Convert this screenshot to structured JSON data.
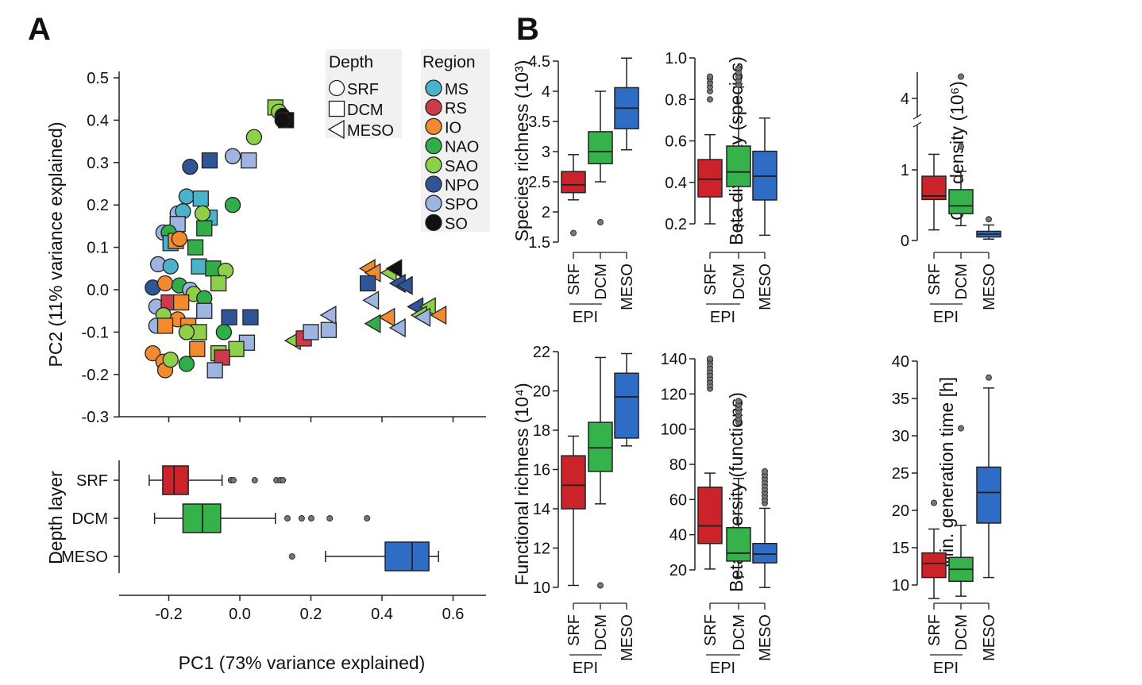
{
  "panels": {
    "a": "A",
    "b": "B"
  },
  "chart_data": [
    {
      "type": "scatter",
      "xlabel": "",
      "ylabel": "PC2 (11% variance explained)",
      "xlim": [
        -0.35,
        0.7
      ],
      "ylim": [
        -0.3,
        0.5
      ],
      "yticks": [
        "0.5",
        "0.4",
        "0.3",
        "0.2",
        "0.1",
        "0.0",
        "-0.1",
        "-0.2",
        "-0.3"
      ],
      "legend": {
        "placement": "top-right",
        "depth_title": "Depth",
        "depth": [
          {
            "label": "SRF",
            "shape": "circle"
          },
          {
            "label": "DCM",
            "shape": "square"
          },
          {
            "label": "MESO",
            "shape": "triangle-left"
          }
        ],
        "region_title": "Region",
        "regions": [
          {
            "label": "MS",
            "color": "#4bb3c9"
          },
          {
            "label": "RS",
            "color": "#cc3b4a"
          },
          {
            "label": "IO",
            "color": "#f28a30"
          },
          {
            "label": "NAO",
            "color": "#2fae4a"
          },
          {
            "label": "SAO",
            "color": "#8fd04a"
          },
          {
            "label": "NPO",
            "color": "#2f5597"
          },
          {
            "label": "SPO",
            "color": "#9db5e0"
          },
          {
            "label": "SO",
            "color": "#111111"
          }
        ]
      },
      "points": [
        [
          "SAO",
          "DCM",
          0.1,
          0.43
        ],
        [
          "SAO",
          "SRF",
          0.11,
          0.42
        ],
        [
          "SO",
          "SRF",
          0.12,
          0.41
        ],
        [
          "SO",
          "DCM",
          0.13,
          0.4
        ],
        [
          "SO",
          "SRF",
          0.12,
          0.4
        ],
        [
          "SAO",
          "SRF",
          0.04,
          0.36
        ],
        [
          "NPO",
          "SRF",
          -0.14,
          0.29
        ],
        [
          "NPO",
          "DCM",
          -0.085,
          0.305
        ],
        [
          "SPO",
          "SRF",
          -0.02,
          0.315
        ],
        [
          "SPO",
          "DCM",
          0.025,
          0.305
        ],
        [
          "NAO",
          "SRF",
          -0.02,
          0.2
        ],
        [
          "MS",
          "SRF",
          -0.15,
          0.22
        ],
        [
          "MS",
          "DCM",
          -0.11,
          0.215
        ],
        [
          "SPO",
          "SRF",
          -0.175,
          0.18
        ],
        [
          "MS",
          "SRF",
          -0.16,
          0.185
        ],
        [
          "MS",
          "DCM",
          -0.085,
          0.17
        ],
        [
          "NAO",
          "DCM",
          -0.1,
          0.145
        ],
        [
          "SAO",
          "SRF",
          -0.105,
          0.18
        ],
        [
          "SPO",
          "DCM",
          -0.175,
          0.155
        ],
        [
          "SPO",
          "SRF",
          -0.215,
          0.135
        ],
        [
          "NAO",
          "SRF",
          -0.2,
          0.135
        ],
        [
          "MS",
          "DCM",
          -0.195,
          0.11
        ],
        [
          "IO",
          "DCM",
          -0.18,
          0.115
        ],
        [
          "IO",
          "SRF",
          -0.17,
          0.12
        ],
        [
          "NAO",
          "DCM",
          -0.125,
          0.1
        ],
        [
          "SPO",
          "SRF",
          -0.23,
          0.06
        ],
        [
          "MS",
          "SRF",
          -0.195,
          0.055
        ],
        [
          "MS",
          "DCM",
          -0.115,
          0.055
        ],
        [
          "NAO",
          "DCM",
          -0.075,
          0.05
        ],
        [
          "SAO",
          "SRF",
          -0.04,
          0.045
        ],
        [
          "SAO",
          "DCM",
          -0.06,
          0.015
        ],
        [
          "NPO",
          "SRF",
          -0.245,
          0.005
        ],
        [
          "IO",
          "SRF",
          -0.21,
          0.015
        ],
        [
          "NAO",
          "SRF",
          -0.17,
          0.01
        ],
        [
          "SPO",
          "SRF",
          -0.14,
          0.0
        ],
        [
          "SAO",
          "SRF",
          -0.13,
          -0.01
        ],
        [
          "NAO",
          "SRF",
          -0.1,
          -0.02
        ],
        [
          "SPO",
          "SRF",
          -0.235,
          -0.04
        ],
        [
          "RS",
          "DCM",
          -0.2,
          -0.03
        ],
        [
          "IO",
          "DCM",
          -0.165,
          -0.03
        ],
        [
          "SPO",
          "DCM",
          -0.1,
          -0.05
        ],
        [
          "SAO",
          "SRF",
          -0.215,
          -0.06
        ],
        [
          "IO",
          "SRF",
          -0.175,
          -0.07
        ],
        [
          "SPO",
          "SRF",
          -0.235,
          -0.085
        ],
        [
          "IO",
          "DCM",
          -0.21,
          -0.085
        ],
        [
          "IO",
          "DCM",
          -0.145,
          -0.085
        ],
        [
          "NPO",
          "DCM",
          -0.03,
          -0.065
        ],
        [
          "NPO",
          "DCM",
          0.03,
          -0.065
        ],
        [
          "SAO",
          "DCM",
          -0.115,
          -0.1
        ],
        [
          "SAO",
          "SRF",
          -0.15,
          -0.1
        ],
        [
          "NAO",
          "SRF",
          -0.045,
          -0.1
        ],
        [
          "SPO",
          "DCM",
          0.02,
          -0.125
        ],
        [
          "SAO",
          "DCM",
          -0.01,
          -0.14
        ],
        [
          "IO",
          "DCM",
          -0.12,
          -0.14
        ],
        [
          "SAO",
          "DCM",
          -0.06,
          -0.15
        ],
        [
          "RS",
          "DCM",
          -0.05,
          -0.16
        ],
        [
          "SPO",
          "DCM",
          -0.07,
          -0.19
        ],
        [
          "NAO",
          "SRF",
          -0.15,
          -0.175
        ],
        [
          "IO",
          "SRF",
          -0.245,
          -0.15
        ],
        [
          "IO",
          "SRF",
          -0.215,
          -0.17
        ],
        [
          "IO",
          "SRF",
          -0.21,
          -0.19
        ],
        [
          "SAO",
          "SRF",
          -0.195,
          -0.165
        ],
        [
          "SAO",
          "MESO",
          0.15,
          -0.12
        ],
        [
          "RS",
          "DCM",
          0.18,
          -0.115
        ],
        [
          "SPO",
          "DCM",
          0.2,
          -0.1
        ],
        [
          "SPO",
          "DCM",
          0.25,
          -0.095
        ],
        [
          "SPO",
          "MESO",
          0.25,
          -0.06
        ],
        [
          "IO",
          "MESO",
          0.36,
          0.05
        ],
        [
          "IO",
          "MESO",
          0.375,
          0.04
        ],
        [
          "NPO",
          "DCM",
          0.36,
          0.015
        ],
        [
          "SAO",
          "MESO",
          0.42,
          0.04
        ],
        [
          "SO",
          "MESO",
          0.435,
          0.05
        ],
        [
          "NPO",
          "MESO",
          0.445,
          0.015
        ],
        [
          "NPO",
          "MESO",
          0.465,
          0.01
        ],
        [
          "SPO",
          "MESO",
          0.37,
          -0.025
        ],
        [
          "NPO",
          "MESO",
          0.495,
          -0.04
        ],
        [
          "SAO",
          "MESO",
          0.53,
          -0.04
        ],
        [
          "IO",
          "MESO",
          0.56,
          -0.06
        ],
        [
          "SAO",
          "MESO",
          0.505,
          -0.06
        ],
        [
          "SPO",
          "MESO",
          0.515,
          -0.065
        ],
        [
          "IO",
          "MESO",
          0.415,
          -0.065
        ],
        [
          "NAO",
          "MESO",
          0.375,
          -0.08
        ],
        [
          "SPO",
          "MESO",
          0.445,
          -0.09
        ]
      ]
    },
    {
      "type": "boxplot-horizontal",
      "ylabel": "Depth layer",
      "xlabel": "PC1 (73% variance explained)",
      "xticks": [
        "-0.2",
        "0.0",
        "0.2",
        "0.4",
        "0.6"
      ],
      "xtick_values": [
        -0.2,
        0.0,
        0.2,
        0.4,
        0.6
      ],
      "categories": [
        "SRF",
        "DCM",
        "MESO"
      ],
      "boxes": [
        {
          "whisker": [
            -0.255,
            -0.05
          ],
          "q": [
            -0.217,
            -0.145
          ],
          "median": -0.185,
          "outliers": [
            -0.025,
            -0.018,
            0.042,
            0.103,
            0.114,
            0.121
          ]
        },
        {
          "whisker": [
            -0.24,
            0.1
          ],
          "q": [
            -0.16,
            -0.054
          ],
          "median": -0.105,
          "outliers": [
            0.134,
            0.174,
            0.201,
            0.253,
            0.358
          ]
        },
        {
          "whisker": [
            0.241,
            0.559
          ],
          "q": [
            0.409,
            0.532
          ],
          "median": 0.485,
          "outliers": [
            0.147
          ]
        }
      ]
    },
    {
      "type": "boxplot",
      "ylabel": "Species richness (10³)",
      "ylim": [
        1.5,
        4.5
      ],
      "yticks": [
        "1.5",
        "2",
        "2.5",
        "3",
        "3.5",
        "4",
        "4.5"
      ],
      "ytick_values": [
        1.5,
        2,
        2.5,
        3,
        3.5,
        4,
        4.5
      ],
      "categories": [
        "SRF",
        "DCM",
        "MESO"
      ],
      "group_label": "EPI",
      "boxes": [
        {
          "whisker": [
            2.2,
            2.95
          ],
          "q": [
            2.32,
            2.67
          ],
          "median": 2.45,
          "outliers": [
            1.65
          ]
        },
        {
          "whisker": [
            2.5,
            4.0
          ],
          "q": [
            2.8,
            3.33
          ],
          "median": 3.0,
          "outliers": [
            1.83
          ]
        },
        {
          "whisker": [
            3.03,
            4.55
          ],
          "q": [
            3.38,
            4.06
          ],
          "median": 3.72,
          "outliers": []
        }
      ]
    },
    {
      "type": "boxplot",
      "ylabel": "Beta diversity (species)",
      "ylim": [
        0.2,
        1.0
      ],
      "yticks": [
        "0.2",
        "0.4",
        "0.6",
        "0.8",
        "1.0"
      ],
      "ytick_values": [
        0.2,
        0.4,
        0.6,
        0.8,
        1.0
      ],
      "categories": [
        "SRF",
        "DCM",
        "MESO"
      ],
      "group_label": "EPI",
      "boxes": [
        {
          "whisker": [
            0.2,
            0.63
          ],
          "q": [
            0.33,
            0.51
          ],
          "median": 0.415,
          "outliers": [
            0.8,
            0.84,
            0.86,
            0.88,
            0.9,
            0.91
          ]
        },
        {
          "whisker": [
            0.19,
            0.86
          ],
          "q": [
            0.38,
            0.575
          ],
          "median": 0.45,
          "outliers": [
            0.87,
            0.89,
            0.91,
            0.93,
            0.95
          ]
        },
        {
          "whisker": [
            0.145,
            0.71
          ],
          "q": [
            0.315,
            0.55
          ],
          "median": 0.43,
          "outliers": []
        }
      ]
    },
    {
      "type": "boxplot",
      "ylabel": "Cell density (10⁶)",
      "ylim": [
        0,
        4.6
      ],
      "axis_break": [
        1.6,
        3.8
      ],
      "yticks": [
        "0",
        "1",
        "4"
      ],
      "ytick_values": [
        0,
        1,
        4
      ],
      "categories": [
        "SRF",
        "DCM",
        "MESO"
      ],
      "group_label": "EPI",
      "boxes": [
        {
          "whisker": [
            0.15,
            1.22
          ],
          "q": [
            0.58,
            0.91
          ],
          "median": 0.63,
          "outliers": []
        },
        {
          "whisker": [
            0.21,
            0.98
          ],
          "q": [
            0.38,
            0.72
          ],
          "median": 0.49,
          "outliers": [
            1.33,
            4.5
          ]
        },
        {
          "whisker": [
            0.02,
            0.22
          ],
          "q": [
            0.05,
            0.13
          ],
          "median": 0.09,
          "outliers": [
            0.3
          ]
        }
      ]
    },
    {
      "type": "boxplot",
      "ylabel": "Functional richness (10⁴)",
      "ylim": [
        10,
        22
      ],
      "yticks": [
        "10",
        "12",
        "14",
        "16",
        "18",
        "20",
        "22"
      ],
      "ytick_values": [
        10,
        12,
        14,
        16,
        18,
        20,
        22
      ],
      "categories": [
        "SRF",
        "DCM",
        "MESO"
      ],
      "group_label": "EPI",
      "boxes": [
        {
          "whisker": [
            10.1,
            17.7
          ],
          "q": [
            14.0,
            16.7
          ],
          "median": 15.2,
          "outliers": []
        },
        {
          "whisker": [
            14.25,
            21.7
          ],
          "q": [
            15.9,
            18.4
          ],
          "median": 17.1,
          "outliers": [
            10.1
          ]
        },
        {
          "whisker": [
            17.2,
            21.9
          ],
          "q": [
            17.6,
            20.9
          ],
          "median": 19.7,
          "outliers": []
        }
      ]
    },
    {
      "type": "boxplot",
      "ylabel": "Beta diversity (functions)",
      "ylim": [
        15,
        140
      ],
      "yticks": [
        "20",
        "40",
        "60",
        "80",
        "100",
        "120",
        "140"
      ],
      "ytick_values": [
        20,
        40,
        60,
        80,
        100,
        120,
        140
      ],
      "categories": [
        "SRF",
        "DCM",
        "MESO"
      ],
      "group_label": "EPI",
      "boxes": [
        {
          "whisker": [
            20.5,
            75
          ],
          "q": [
            35,
            67
          ],
          "median": 45,
          "outliers": [
            123,
            125,
            127,
            129,
            131,
            133,
            135,
            137,
            139,
            140
          ]
        },
        {
          "whisker": [
            16,
            72
          ],
          "q": [
            25,
            44
          ],
          "median": 29.5,
          "outliers": [
            104,
            106,
            108,
            110,
            112,
            114,
            116
          ]
        },
        {
          "whisker": [
            10,
            55
          ],
          "q": [
            24,
            35
          ],
          "median": 29,
          "outliers": [
            58,
            60,
            62,
            64,
            66,
            68,
            70,
            72,
            74,
            76
          ]
        }
      ]
    },
    {
      "type": "boxplot",
      "ylabel": "Min. generation time [h]",
      "ylim": [
        10,
        40
      ],
      "yticks": [
        "10",
        "15",
        "20",
        "25",
        "30",
        "35",
        "40"
      ],
      "ytick_values": [
        10,
        15,
        20,
        25,
        30,
        35,
        40
      ],
      "categories": [
        "SRF",
        "DCM",
        "MESO"
      ],
      "group_label": "EPI",
      "boxes": [
        {
          "whisker": [
            8.2,
            17.5
          ],
          "q": [
            11,
            14.3
          ],
          "median": 12.9,
          "outliers": [
            21
          ]
        },
        {
          "whisker": [
            8.5,
            18
          ],
          "q": [
            10.5,
            13.7
          ],
          "median": 12.1,
          "outliers": [
            31
          ]
        },
        {
          "whisker": [
            11,
            36.4
          ],
          "q": [
            18.3,
            25.8
          ],
          "median": 22.4,
          "outliers": [
            37.8
          ]
        }
      ]
    }
  ],
  "colors": {
    "SRF": "#cc2229",
    "DCM": "#35b34a",
    "MESO": "#2f6cc5"
  }
}
